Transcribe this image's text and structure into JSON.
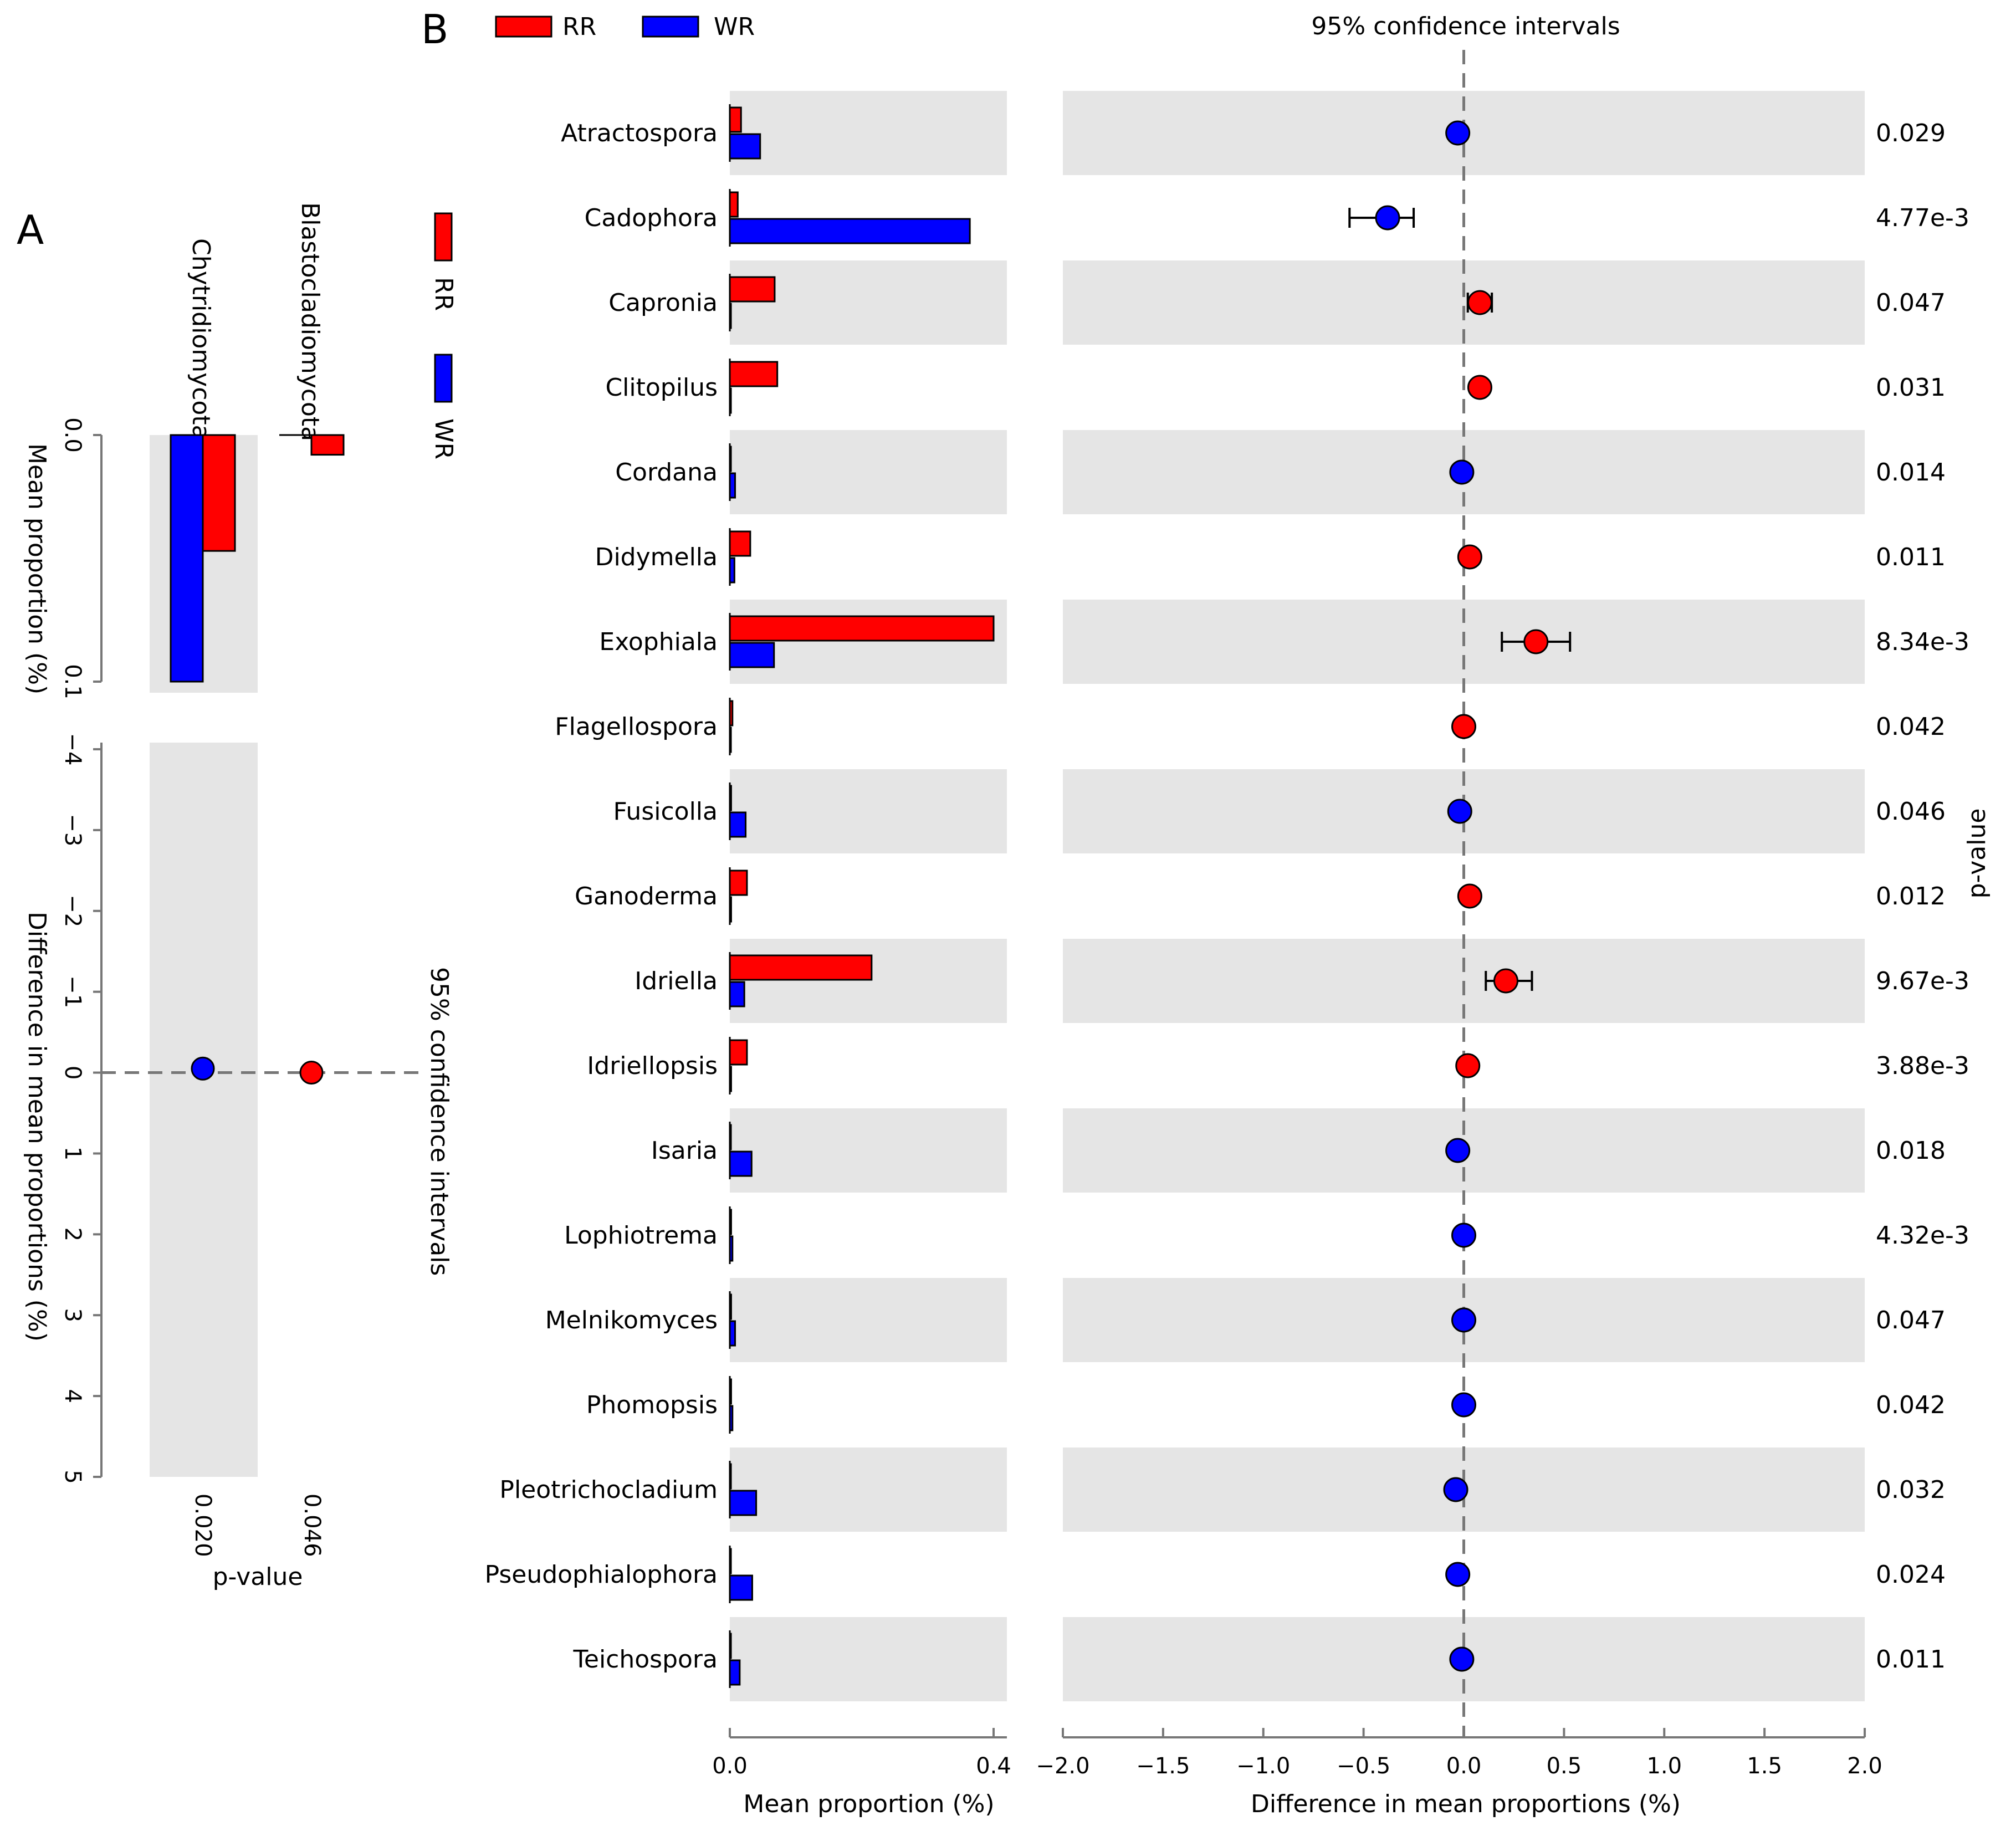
{
  "colors": {
    "RR": "#ff0000",
    "WR": "#0000ff",
    "band": "#e5e5e5"
  },
  "chart_data": [
    {
      "panel": "A",
      "type": "bar",
      "orientation": "vertical (rotated)",
      "legend": [
        "RR",
        "WR"
      ],
      "categories": [
        "Chytridiomycota",
        "Blastocladiomycota"
      ],
      "series": [
        {
          "name": "RR",
          "values": [
            0.047,
            0.008
          ]
        },
        {
          "name": "WR",
          "values": [
            0.1,
            0.0
          ]
        }
      ],
      "mean_axis": {
        "label": "Mean proportion (%)",
        "ticks": [
          "0.0",
          "0.1"
        ],
        "range": [
          0,
          0.1
        ]
      },
      "diff_axis": {
        "label": "Difference in mean proportions (%)",
        "ticks": [
          "−4",
          "−3",
          "−2",
          "−1",
          "0",
          "1",
          "2",
          "3",
          "4",
          "5"
        ],
        "range": [
          -4,
          5
        ]
      },
      "ci_title": "95% confidence intervals",
      "differences": [
        {
          "category": "Chytridiomycota",
          "value": -0.05,
          "group": "WR"
        },
        {
          "category": "Blastocladiomycota",
          "value": 0.0,
          "group": "RR"
        }
      ],
      "p_values": [
        "0.020",
        "0.046"
      ],
      "p_label": "p-value"
    },
    {
      "panel": "B",
      "type": "bar",
      "orientation": "horizontal",
      "legend": [
        "RR",
        "WR"
      ],
      "categories": [
        "Atractospora",
        "Cadophora",
        "Capronia",
        "Clitopilus",
        "Cordana",
        "Didymella",
        "Exophiala",
        "Flagellospora",
        "Fusicolla",
        "Ganoderma",
        "Idriella",
        "Idriellopsis",
        "Isaria",
        "Lophiotrema",
        "Melnikomyces",
        "Phomopsis",
        "Pleotrichocladium",
        "Pseudophialophora",
        "Teichospora"
      ],
      "series": [
        {
          "name": "RR",
          "values": [
            0.017,
            0.012,
            0.068,
            0.072,
            0.001,
            0.031,
            0.4,
            0.004,
            0.002,
            0.026,
            0.215,
            0.026,
            0.001,
            0.002,
            0.002,
            0.002,
            0.001,
            0.001,
            0.001
          ]
        },
        {
          "name": "WR",
          "values": [
            0.046,
            0.364,
            0.001,
            0.001,
            0.008,
            0.007,
            0.067,
            0.001,
            0.024,
            0.002,
            0.022,
            0.002,
            0.033,
            0.004,
            0.008,
            0.004,
            0.04,
            0.034,
            0.015
          ]
        }
      ],
      "mean_axis": {
        "label": "Mean proportion (%)",
        "ticks": [
          "0.0",
          "0.4"
        ],
        "range": [
          0,
          0.42
        ]
      },
      "diff_axis": {
        "label": "Difference in mean proportions (%)",
        "ticks": [
          "−2.0",
          "−1.5",
          "−1.0",
          "−0.5",
          "0.0",
          "0.5",
          "1.0",
          "1.5",
          "2.0"
        ],
        "range": [
          -2.0,
          2.0
        ]
      },
      "ci_title": "95% confidence intervals",
      "differences": [
        {
          "value": -0.03,
          "ci": null,
          "group": "WR"
        },
        {
          "value": -0.38,
          "ci": [
            -0.57,
            -0.25
          ],
          "group": "WR"
        },
        {
          "value": 0.08,
          "ci": [
            0.02,
            0.14
          ],
          "group": "RR"
        },
        {
          "value": 0.08,
          "ci": null,
          "group": "RR"
        },
        {
          "value": -0.01,
          "ci": null,
          "group": "WR"
        },
        {
          "value": 0.03,
          "ci": null,
          "group": "RR"
        },
        {
          "value": 0.36,
          "ci": [
            0.19,
            0.53
          ],
          "group": "RR"
        },
        {
          "value": 0.0,
          "ci": null,
          "group": "RR"
        },
        {
          "value": -0.02,
          "ci": null,
          "group": "WR"
        },
        {
          "value": 0.03,
          "ci": null,
          "group": "RR"
        },
        {
          "value": 0.21,
          "ci": [
            0.11,
            0.34
          ],
          "group": "RR"
        },
        {
          "value": 0.02,
          "ci": null,
          "group": "RR"
        },
        {
          "value": -0.03,
          "ci": null,
          "group": "WR"
        },
        {
          "value": 0.0,
          "ci": null,
          "group": "WR"
        },
        {
          "value": 0.0,
          "ci": null,
          "group": "WR"
        },
        {
          "value": 0.0,
          "ci": null,
          "group": "WR"
        },
        {
          "value": -0.04,
          "ci": null,
          "group": "WR"
        },
        {
          "value": -0.03,
          "ci": null,
          "group": "WR"
        },
        {
          "value": -0.01,
          "ci": null,
          "group": "WR"
        }
      ],
      "p_values": [
        "0.029",
        "4.77e-3",
        "0.047",
        "0.031",
        "0.014",
        "0.011",
        "8.34e-3",
        "0.042",
        "0.046",
        "0.012",
        "9.67e-3",
        "3.88e-3",
        "0.018",
        "4.32e-3",
        "0.047",
        "0.042",
        "0.032",
        "0.024",
        "0.011"
      ],
      "p_label": "p-value"
    }
  ]
}
